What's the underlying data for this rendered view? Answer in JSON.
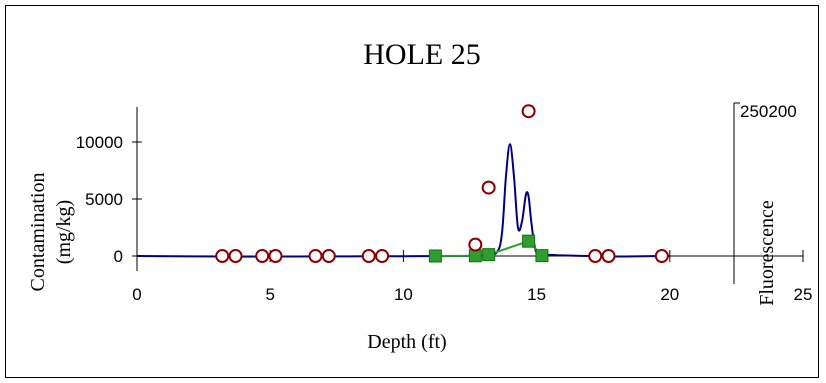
{
  "chart_data": {
    "type": "line",
    "title": "HOLE 25",
    "xlabel": "Depth (ft)",
    "ylabel_line1": "Contamination",
    "ylabel_line2": "(mg/kg)",
    "y2label": "Fluorescence",
    "y2_top_tick": "250200",
    "xlim": [
      0,
      25
    ],
    "ylim": [
      -500,
      13000
    ],
    "x_ticks": [
      0,
      5,
      10,
      15,
      20,
      25
    ],
    "y_ticks": [
      0,
      5000,
      10000
    ],
    "colors": {
      "fluorescence_line": "#000080",
      "green_series": "#2e9e2e",
      "green_edge": "#1a6b1a",
      "circle_series": "#8b0000"
    },
    "series": [
      {
        "kind": "circles",
        "x": [
          3.2,
          3.7,
          4.7,
          5.2,
          6.7,
          7.2,
          8.7,
          9.2,
          12.7,
          13.2,
          14.7,
          17.2,
          17.7,
          19.7
        ],
        "y": [
          0,
          0,
          0,
          0,
          0,
          0,
          0,
          0,
          1000,
          6000,
          12700,
          0,
          0,
          0
        ]
      },
      {
        "kind": "squares-line",
        "x": [
          11.2,
          12.7,
          13.2,
          14.7,
          15.2
        ],
        "y": [
          0,
          20,
          120,
          1300,
          30
        ]
      },
      {
        "kind": "smooth-line",
        "x": [
          0,
          2,
          4,
          6,
          8,
          10,
          11,
          12,
          13,
          13.5,
          13.7,
          13.85,
          14.0,
          14.15,
          14.3,
          14.45,
          14.6,
          14.7,
          14.8,
          14.95,
          15.1,
          15.5,
          16,
          17,
          18,
          19,
          20
        ],
        "y": [
          0,
          -30,
          -50,
          -40,
          -30,
          -20,
          -10,
          0,
          50,
          300,
          2000,
          7000,
          9800,
          7000,
          2500,
          3000,
          5400,
          5200,
          3000,
          600,
          200,
          100,
          50,
          0,
          -40,
          -20,
          0
        ]
      }
    ]
  }
}
